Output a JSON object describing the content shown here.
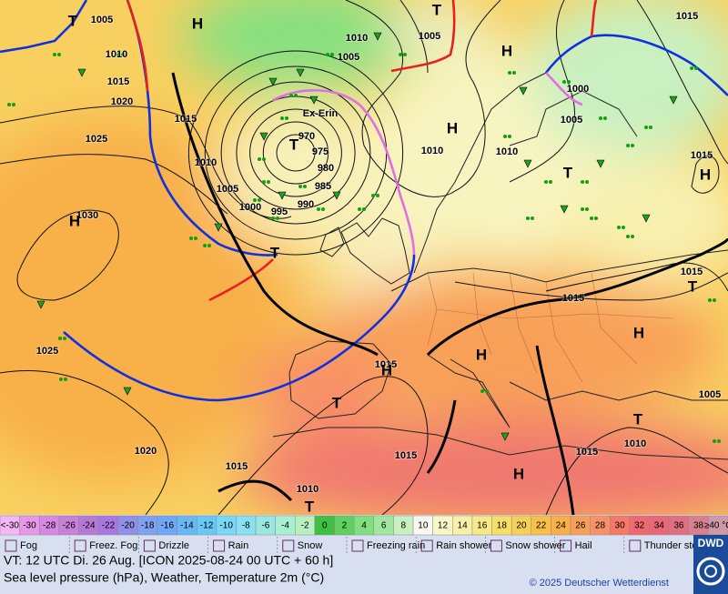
{
  "map": {
    "storm_name": "Ex-Erin",
    "pressure_labels": [
      "1005",
      "1010",
      "1015",
      "1020",
      "1025",
      "1030",
      "1015",
      "1010",
      "1005",
      "1000",
      "995",
      "990",
      "985",
      "980",
      "975",
      "970",
      "1010",
      "1005",
      "1005",
      "1010",
      "1010",
      "1000",
      "1005",
      "1015",
      "1015",
      "1015",
      "1015",
      "1015",
      "1015",
      "1025",
      "1020",
      "1015",
      "1010",
      "1015",
      "1010",
      "1005"
    ],
    "centers": [
      "H",
      "H",
      "H",
      "H",
      "T",
      "T",
      "H",
      "T",
      "T",
      "T",
      "H",
      "H",
      "H",
      "T",
      "H",
      "T",
      "T",
      "T"
    ]
  },
  "legend": {
    "temperature_scale": [
      {
        "label": "<-30",
        "color": "#f4b8f4"
      },
      {
        "label": "-30",
        "color": "#e898e8"
      },
      {
        "label": "-28",
        "color": "#d888e0"
      },
      {
        "label": "-26",
        "color": "#c880d8"
      },
      {
        "label": "-24",
        "color": "#b878d8"
      },
      {
        "label": "-22",
        "color": "#a878e0"
      },
      {
        "label": "-20",
        "color": "#9090e8"
      },
      {
        "label": "-18",
        "color": "#80a0f0"
      },
      {
        "label": "-16",
        "color": "#70a8f8"
      },
      {
        "label": "-14",
        "color": "#68b8f8"
      },
      {
        "label": "-12",
        "color": "#68c8f8"
      },
      {
        "label": "-10",
        "color": "#78d8f8"
      },
      {
        "label": "-8",
        "color": "#88e0f0"
      },
      {
        "label": "-6",
        "color": "#98e8e0"
      },
      {
        "label": "-4",
        "color": "#a8f0d0"
      },
      {
        "label": "-2",
        "color": "#b8f0c0"
      },
      {
        "label": "0",
        "color": "#40c040"
      },
      {
        "label": "2",
        "color": "#60d060"
      },
      {
        "label": "4",
        "color": "#80e080"
      },
      {
        "label": "6",
        "color": "#a0e8a0"
      },
      {
        "label": "8",
        "color": "#c8f0c0"
      },
      {
        "label": "10",
        "color": "#f8f8f0"
      },
      {
        "label": "12",
        "color": "#f8f8c8"
      },
      {
        "label": "14",
        "color": "#f8f0a8"
      },
      {
        "label": "16",
        "color": "#f8e888"
      },
      {
        "label": "18",
        "color": "#f8e068"
      },
      {
        "label": "20",
        "color": "#f8d058"
      },
      {
        "label": "22",
        "color": "#f8c048"
      },
      {
        "label": "24",
        "color": "#f8b048"
      },
      {
        "label": "26",
        "color": "#f8a058"
      },
      {
        "label": "28",
        "color": "#f89068"
      },
      {
        "label": "30",
        "color": "#f87868"
      },
      {
        "label": "32",
        "color": "#f06870"
      },
      {
        "label": "34",
        "color": "#e86878"
      },
      {
        "label": "36",
        "color": "#e07080"
      },
      {
        "label": "38",
        "color": "#d88090"
      },
      {
        "label": "≥40 °C",
        "color": "#d098a8"
      }
    ],
    "weather": [
      "Fog",
      "Freez. Fog",
      "Drizzle",
      "Rain",
      "Snow",
      "Freezing rain",
      "Rain shower",
      "Snow shower",
      "Hail",
      "Thunder storm"
    ]
  },
  "footer": {
    "valid_time": "VT: 12 UTC Di.  26 Aug. [ICON 2025-08-24  00 UTC + 60 h]",
    "description": "Sea level pressure (hPa), Weather, Temperature 2m (°C)",
    "copyright": "© 2025 Deutscher Wetterdienst",
    "logo": "DWD"
  }
}
